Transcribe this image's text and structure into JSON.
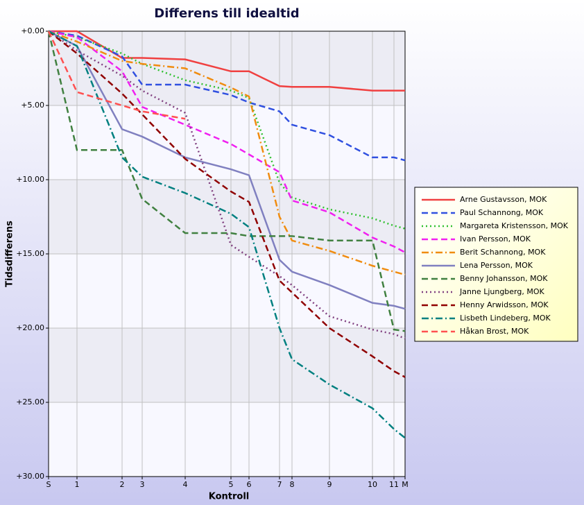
{
  "chart_data": {
    "type": "line",
    "title": "Differens till idealtid",
    "x_label": "Kontroll",
    "y_label": "Tidsdifferens",
    "x": [
      0,
      41,
      106,
      135,
      197,
      263,
      289,
      333,
      351,
      405,
      467,
      498,
      514
    ],
    "xlim": [
      0,
      514
    ],
    "xticks": [
      {
        "value": 0,
        "label": "S"
      },
      {
        "value": 41,
        "label": "1"
      },
      {
        "value": 106,
        "label": "2"
      },
      {
        "value": 135,
        "label": "3"
      },
      {
        "value": 197,
        "label": "4"
      },
      {
        "value": 263,
        "label": "5"
      },
      {
        "value": 289,
        "label": "6"
      },
      {
        "value": 333,
        "label": "7"
      },
      {
        "value": 351,
        "label": "8"
      },
      {
        "value": 405,
        "label": "9"
      },
      {
        "value": 467,
        "label": "10"
      },
      {
        "value": 498,
        "label": "11"
      },
      {
        "value": 514,
        "label": "M"
      }
    ],
    "ylim": [
      0,
      30
    ],
    "y_inverted": true,
    "yticks": [
      {
        "value": 0,
        "label": "+0.00"
      },
      {
        "value": 5,
        "label": "+5.00"
      },
      {
        "value": 10,
        "label": "+10.00"
      },
      {
        "value": 15,
        "label": "+15.00"
      },
      {
        "value": 20,
        "label": "+20.00"
      },
      {
        "value": 25,
        "label": "+25.00"
      },
      {
        "value": 30,
        "label": "+30.00"
      }
    ],
    "grid": true,
    "legend": "right",
    "series": [
      {
        "name": "Arne Gustavsson, MOK",
        "color": "#f04040",
        "dash": "solid",
        "values": [
          0,
          0,
          1.8,
          1.8,
          1.9,
          2.7,
          2.7,
          3.7,
          3.75,
          3.75,
          4.0,
          4.0,
          4.0
        ]
      },
      {
        "name": "Paul Schannong, MOK",
        "color": "#3050e0",
        "dash": "dashed",
        "values": [
          0,
          0.3,
          1.7,
          3.6,
          3.6,
          4.3,
          4.8,
          5.4,
          6.3,
          7.0,
          8.5,
          8.5,
          8.7
        ]
      },
      {
        "name": "Margareta Kristensson, MOK",
        "color": "#30c030",
        "dash": "dotted",
        "values": [
          0,
          0.4,
          1.5,
          2.2,
          3.3,
          4.0,
          4.5,
          10.2,
          11.2,
          12.0,
          12.6,
          13.1,
          13.3
        ]
      },
      {
        "name": "Ivan Persson, MOK",
        "color": "#f020f0",
        "dash": "dashed",
        "values": [
          0,
          0.4,
          2.7,
          5.1,
          6.3,
          7.6,
          8.3,
          9.5,
          11.4,
          12.2,
          13.9,
          14.5,
          14.9
        ]
      },
      {
        "name": "Berit Schannong, MOK",
        "color": "#f08c10",
        "dash": "dashdot",
        "values": [
          0,
          0.7,
          2.0,
          2.2,
          2.5,
          3.8,
          4.4,
          12.5,
          14.1,
          14.8,
          15.8,
          16.2,
          16.4
        ]
      },
      {
        "name": "Lena Persson, MOK",
        "color": "#8080c0",
        "dash": "solid",
        "values": [
          0,
          1.0,
          6.6,
          7.1,
          8.5,
          9.3,
          9.7,
          15.4,
          16.2,
          17.1,
          18.3,
          18.5,
          18.7
        ]
      },
      {
        "name": "Benny Johansson, MOK",
        "color": "#408040",
        "dash": "dashed",
        "values": [
          0,
          8.0,
          8.0,
          11.3,
          13.6,
          13.6,
          13.8,
          13.8,
          13.8,
          14.1,
          14.1,
          20.1,
          20.2
        ]
      },
      {
        "name": "Janne Ljungberg, MOK",
        "color": "#804080",
        "dash": "dotted",
        "values": [
          0,
          1.3,
          3.0,
          4.0,
          5.5,
          14.4,
          15.2,
          16.5,
          17.1,
          19.2,
          20.1,
          20.4,
          20.7
        ]
      },
      {
        "name": "Henny Arwidsson, MOK",
        "color": "#900000",
        "dash": "dashed",
        "values": [
          0,
          1.5,
          4.2,
          5.6,
          8.6,
          10.8,
          11.5,
          16.8,
          17.6,
          20.0,
          21.9,
          22.9,
          23.3
        ]
      },
      {
        "name": "Lisbeth Lindeberg, MOK",
        "color": "#008080",
        "dash": "dashdot",
        "values": [
          0,
          1.0,
          8.5,
          9.8,
          10.9,
          12.3,
          13.2,
          20.0,
          22.1,
          23.8,
          25.4,
          26.8,
          27.4
        ]
      },
      {
        "name": "Håkan Brost, MOK",
        "color": "#ff5050",
        "dash": "dashed",
        "values": [
          0,
          4.1,
          5.0,
          5.4,
          5.9,
          null,
          null,
          null,
          null,
          null,
          null,
          null,
          null
        ]
      }
    ]
  }
}
